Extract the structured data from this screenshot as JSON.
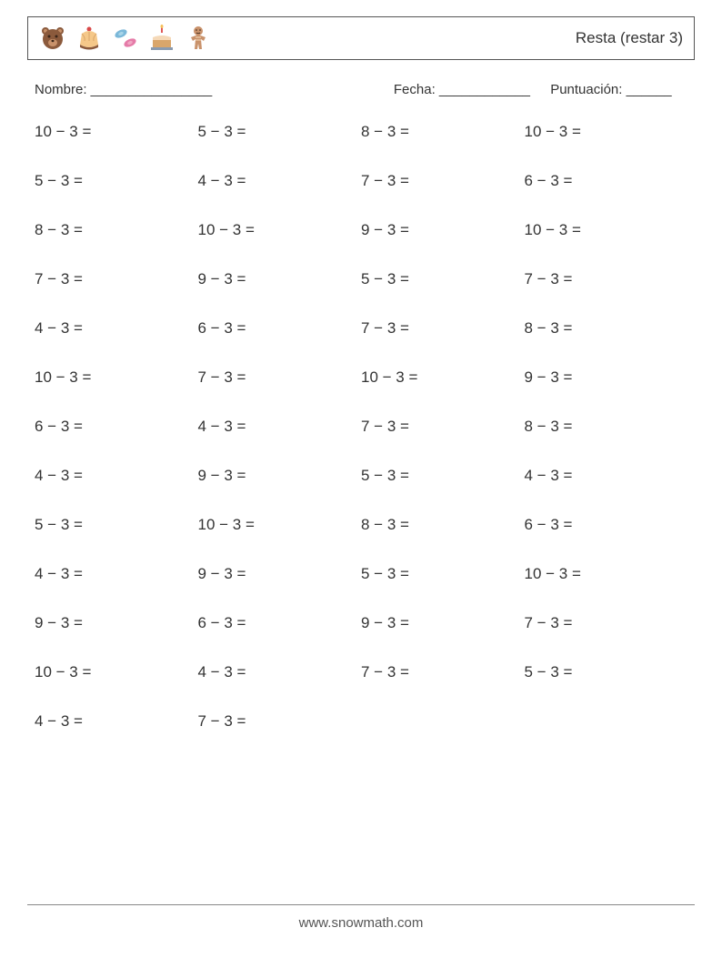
{
  "header": {
    "title": "Resta (restar 3)",
    "icon_colors": {
      "bear": "#8b5a3c",
      "bear_light": "#c9926b",
      "pudding_top": "#f5c889",
      "pudding_base": "#8b5a3c",
      "candy1": "#7bb8d9",
      "candy2": "#e57ba8",
      "cake_base": "#d9a66b",
      "cake_icing": "#f5d9b8",
      "candle": "#e05a5a",
      "ginger": "#c9926b",
      "ginger_dark": "#8b5a3c"
    }
  },
  "info": {
    "name_label": "Nombre: ________________",
    "date_label": "Fecha: ____________",
    "score_label": "Puntuación: ______"
  },
  "problems": [
    [
      "10 − 3 =",
      "5 − 3 =",
      "8 − 3 =",
      "10 − 3 ="
    ],
    [
      "5 − 3 =",
      "4 − 3 =",
      "7 − 3 =",
      "6 − 3 ="
    ],
    [
      "8 − 3 =",
      "10 − 3 =",
      "9 − 3 =",
      "10 − 3 ="
    ],
    [
      "7 − 3 =",
      "9 − 3 =",
      "5 − 3 =",
      "7 − 3 ="
    ],
    [
      "4 − 3 =",
      "6 − 3 =",
      "7 − 3 =",
      "8 − 3 ="
    ],
    [
      "10 − 3 =",
      "7 − 3 =",
      "10 − 3 =",
      "9 − 3 ="
    ],
    [
      "6 − 3 =",
      "4 − 3 =",
      "7 − 3 =",
      "8 − 3 ="
    ],
    [
      "4 − 3 =",
      "9 − 3 =",
      "5 − 3 =",
      "4 − 3 ="
    ],
    [
      "5 − 3 =",
      "10 − 3 =",
      "8 − 3 =",
      "6 − 3 ="
    ],
    [
      "4 − 3 =",
      "9 − 3 =",
      "5 − 3 =",
      "10 − 3 ="
    ],
    [
      "9 − 3 =",
      "6 − 3 =",
      "9 − 3 =",
      "7 − 3 ="
    ],
    [
      "10 − 3 =",
      "4 − 3 =",
      "7 − 3 =",
      "5 − 3 ="
    ],
    [
      "4 − 3 =",
      "7 − 3 =",
      "",
      ""
    ]
  ],
  "footer": {
    "url": "www.snowmath.com"
  }
}
